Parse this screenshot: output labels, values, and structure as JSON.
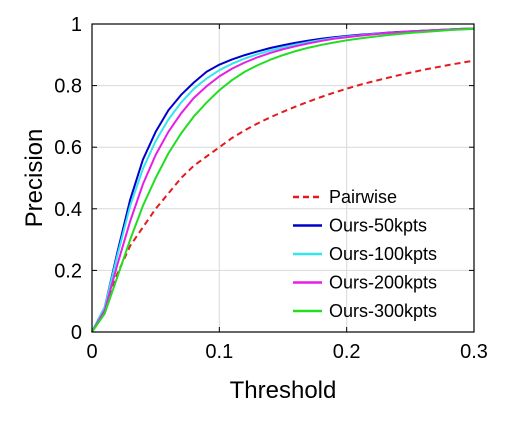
{
  "chart_data": {
    "type": "line",
    "title": "",
    "xlabel": "Threshold",
    "ylabel": "Precision",
    "xlim": [
      0,
      0.3
    ],
    "ylim": [
      0,
      1
    ],
    "xticks": [
      0,
      0.1,
      0.2,
      0.3
    ],
    "xtick_labels": [
      "0",
      "0.1",
      "0.2",
      "0.3"
    ],
    "yticks": [
      0,
      0.2,
      0.4,
      0.6,
      0.8,
      1
    ],
    "ytick_labels": [
      "0",
      "0.2",
      "0.4",
      "0.6",
      "0.8",
      "1"
    ],
    "grid": true,
    "legend_position": "lower-right",
    "x": [
      0,
      0.01,
      0.02,
      0.03,
      0.04,
      0.05,
      0.06,
      0.07,
      0.08,
      0.09,
      0.1,
      0.11,
      0.12,
      0.13,
      0.14,
      0.15,
      0.16,
      0.17,
      0.18,
      0.19,
      0.2,
      0.21,
      0.22,
      0.23,
      0.24,
      0.25,
      0.26,
      0.27,
      0.28,
      0.29,
      0.3
    ],
    "series": [
      {
        "name": "Pairwise",
        "color": "#e41a1c",
        "dash": "dashed",
        "values": [
          0,
          0.08,
          0.19,
          0.28,
          0.34,
          0.4,
          0.45,
          0.5,
          0.54,
          0.57,
          0.6,
          0.63,
          0.655,
          0.677,
          0.697,
          0.715,
          0.732,
          0.748,
          0.763,
          0.777,
          0.79,
          0.802,
          0.813,
          0.823,
          0.833,
          0.842,
          0.851,
          0.859,
          0.867,
          0.874,
          0.881
        ]
      },
      {
        "name": "Ours-50kpts",
        "color": "#0000cc",
        "dash": "solid",
        "values": [
          0,
          0.08,
          0.26,
          0.43,
          0.56,
          0.65,
          0.72,
          0.77,
          0.81,
          0.845,
          0.868,
          0.885,
          0.899,
          0.911,
          0.922,
          0.931,
          0.939,
          0.946,
          0.952,
          0.957,
          0.961,
          0.965,
          0.968,
          0.971,
          0.974,
          0.976,
          0.978,
          0.98,
          0.982,
          0.984,
          0.985
        ]
      },
      {
        "name": "Ours-100kpts",
        "color": "#33e6ee",
        "dash": "solid",
        "values": [
          0,
          0.08,
          0.25,
          0.41,
          0.53,
          0.62,
          0.69,
          0.745,
          0.79,
          0.823,
          0.85,
          0.871,
          0.888,
          0.902,
          0.914,
          0.924,
          0.933,
          0.941,
          0.948,
          0.954,
          0.959,
          0.963,
          0.967,
          0.97,
          0.973,
          0.976,
          0.978,
          0.98,
          0.982,
          0.984,
          0.985
        ]
      },
      {
        "name": "Ours-200kpts",
        "color": "#e61ee6",
        "dash": "solid",
        "values": [
          0,
          0.07,
          0.22,
          0.36,
          0.48,
          0.575,
          0.65,
          0.71,
          0.76,
          0.798,
          0.83,
          0.855,
          0.875,
          0.892,
          0.906,
          0.918,
          0.928,
          0.937,
          0.945,
          0.952,
          0.957,
          0.962,
          0.966,
          0.97,
          0.973,
          0.976,
          0.978,
          0.98,
          0.982,
          0.984,
          0.985
        ]
      },
      {
        "name": "Ours-300kpts",
        "color": "#22dd22",
        "dash": "solid",
        "values": [
          0,
          0.06,
          0.18,
          0.3,
          0.41,
          0.5,
          0.58,
          0.645,
          0.7,
          0.745,
          0.785,
          0.818,
          0.845,
          0.866,
          0.884,
          0.899,
          0.912,
          0.923,
          0.932,
          0.94,
          0.947,
          0.953,
          0.958,
          0.963,
          0.967,
          0.971,
          0.974,
          0.977,
          0.98,
          0.982,
          0.984
        ]
      }
    ]
  }
}
